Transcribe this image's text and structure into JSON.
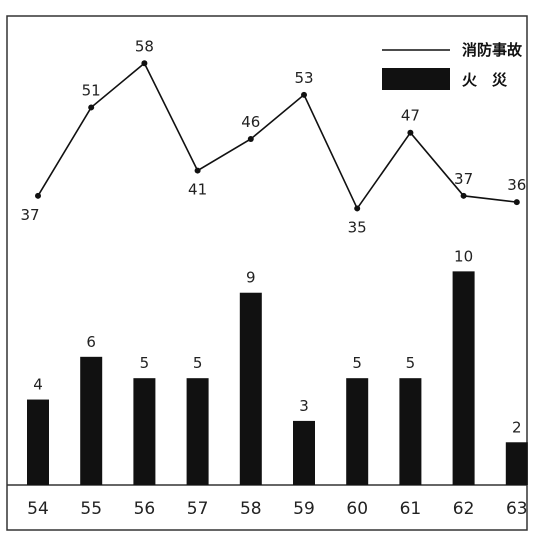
{
  "chart_data": {
    "type": "bar+line",
    "categories": [
      "54",
      "55",
      "56",
      "57",
      "58",
      "59",
      "60",
      "61",
      "62",
      "63"
    ],
    "series": [
      {
        "name": "火　災",
        "type": "bar",
        "values": [
          4,
          6,
          5,
          5,
          9,
          3,
          5,
          5,
          10,
          2
        ]
      },
      {
        "name": "消防事故",
        "type": "line",
        "values": [
          37,
          51,
          58,
          41,
          46,
          53,
          35,
          47,
          37,
          36
        ]
      }
    ],
    "legend_position": "top-right",
    "grid": false,
    "bar_range": [
      0,
      11
    ],
    "line_range": [
      30,
      62
    ],
    "colors": {
      "bar": "#111111",
      "line": "#111111",
      "frame": "#333333"
    }
  }
}
